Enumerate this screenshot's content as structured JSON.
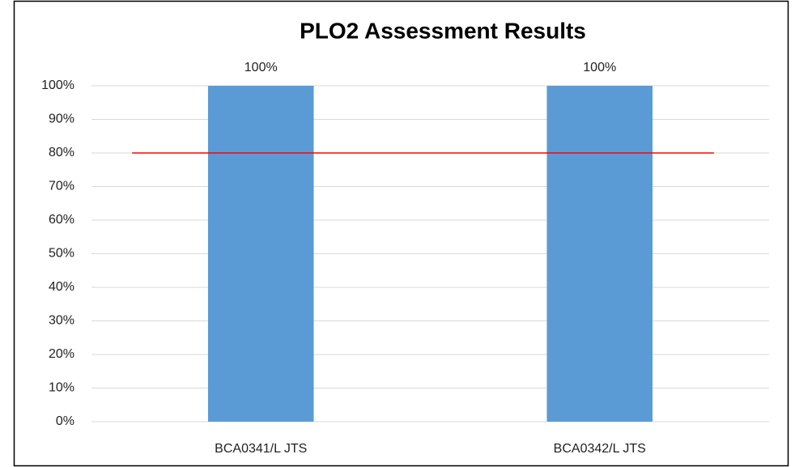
{
  "chart_data": {
    "type": "bar",
    "title": "PLO2 Assessment Results",
    "categories": [
      "BCA0341/L JTS",
      "BCA0342/L JTS"
    ],
    "values": [
      100,
      100
    ],
    "value_labels": [
      "100%",
      "100%"
    ],
    "color": "#5b9bd5",
    "reference_line": {
      "values": [
        80,
        80
      ],
      "color": "#ff0000"
    },
    "ylim": [
      0,
      100
    ],
    "yticks": [
      {
        "value": 0,
        "label": "0%"
      },
      {
        "value": 10,
        "label": "10%"
      },
      {
        "value": 20,
        "label": "20%"
      },
      {
        "value": 30,
        "label": "30%"
      },
      {
        "value": 40,
        "label": "40%"
      },
      {
        "value": 50,
        "label": "50%"
      },
      {
        "value": 60,
        "label": "60%"
      },
      {
        "value": 70,
        "label": "70%"
      },
      {
        "value": 80,
        "label": "80%"
      },
      {
        "value": 90,
        "label": "90%"
      },
      {
        "value": 100,
        "label": "100%"
      }
    ],
    "grid": true
  }
}
